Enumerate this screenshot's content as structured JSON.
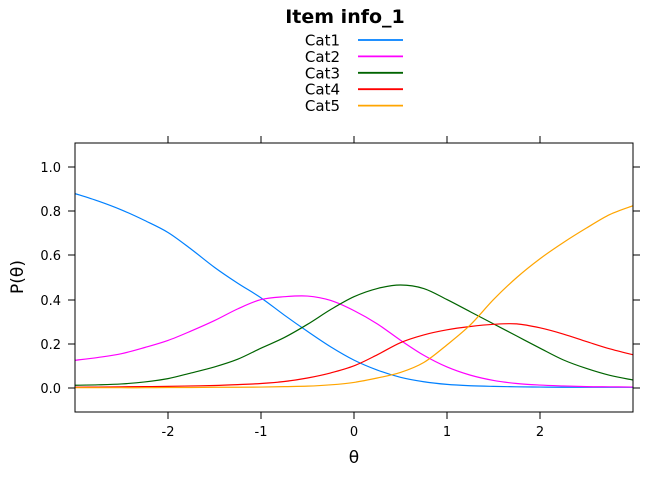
{
  "chart_data": {
    "type": "line",
    "title": "Item info_1",
    "xlabel": "θ",
    "ylabel": "P(θ)",
    "xlim": [
      -3,
      3
    ],
    "ylim": [
      -0.109,
      1.109
    ],
    "grid": false,
    "legend_position": "top-center",
    "x_tick_values": [
      -2,
      -1,
      0,
      1,
      2
    ],
    "x_tick_labels": [
      "-2",
      "-1",
      "0",
      "1",
      "2"
    ],
    "y_tick_values": [
      0.0,
      0.2,
      0.4,
      0.6,
      0.8,
      1.0
    ],
    "y_tick_labels": [
      "0.0",
      "0.2",
      "0.4",
      "0.6",
      "0.8",
      "1.0"
    ],
    "x": [
      -3,
      -2.75,
      -2.5,
      -2.25,
      -2,
      -1.75,
      -1.5,
      -1.25,
      -1,
      -0.75,
      -0.5,
      -0.25,
      0,
      0.25,
      0.5,
      0.75,
      1,
      1.25,
      1.5,
      1.75,
      2,
      2.25,
      2.5,
      2.75,
      3
    ],
    "series": [
      {
        "name": "Cat1",
        "color": "#0080FF",
        "values": [
          0.88,
          0.846,
          0.806,
          0.758,
          0.704,
          0.628,
          0.546,
          0.474,
          0.408,
          0.33,
          0.256,
          0.186,
          0.126,
          0.081,
          0.048,
          0.028,
          0.016,
          0.01,
          0.007,
          0.005,
          0.004,
          0.003,
          0.003,
          0.003,
          0.003
        ]
      },
      {
        "name": "Cat2",
        "color": "#FF00FF",
        "values": [
          0.125,
          0.138,
          0.155,
          0.183,
          0.215,
          0.258,
          0.305,
          0.358,
          0.4,
          0.413,
          0.416,
          0.396,
          0.35,
          0.29,
          0.216,
          0.148,
          0.095,
          0.058,
          0.034,
          0.02,
          0.013,
          0.009,
          0.006,
          0.005,
          0.004
        ]
      },
      {
        "name": "Cat3",
        "color": "#006400",
        "values": [
          0.012,
          0.014,
          0.018,
          0.027,
          0.042,
          0.068,
          0.095,
          0.13,
          0.18,
          0.228,
          0.288,
          0.355,
          0.413,
          0.45,
          0.466,
          0.45,
          0.4,
          0.345,
          0.29,
          0.235,
          0.18,
          0.127,
          0.088,
          0.057,
          0.036
        ]
      },
      {
        "name": "Cat4",
        "color": "#FF0000",
        "values": [
          0.003,
          0.004,
          0.005,
          0.006,
          0.007,
          0.009,
          0.011,
          0.015,
          0.02,
          0.029,
          0.045,
          0.068,
          0.1,
          0.15,
          0.205,
          0.24,
          0.263,
          0.278,
          0.288,
          0.29,
          0.272,
          0.244,
          0.21,
          0.177,
          0.15
        ]
      },
      {
        "name": "Cat5",
        "color": "#FFA500",
        "values": [
          0.001,
          0.001,
          0.001,
          0.001,
          0.002,
          0.002,
          0.003,
          0.003,
          0.004,
          0.006,
          0.008,
          0.014,
          0.025,
          0.045,
          0.07,
          0.115,
          0.195,
          0.285,
          0.4,
          0.5,
          0.585,
          0.658,
          0.724,
          0.785,
          0.825
        ]
      }
    ]
  }
}
